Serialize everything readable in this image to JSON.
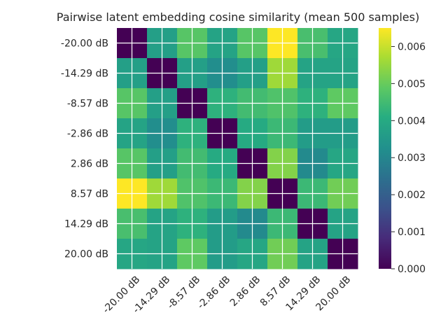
{
  "chart_data": {
    "type": "heatmap",
    "title": "Pairwise latent embedding cosine similarity (mean 500 samples)",
    "xlabel": "",
    "ylabel": "",
    "x_tick_labels": [
      "-20.00 dB",
      "-14.29 dB",
      "-8.57 dB",
      "-2.86 dB",
      "2.86 dB",
      "8.57 dB",
      "14.29 dB",
      "20.00 dB"
    ],
    "y_tick_labels": [
      "-20.00 dB",
      "-14.29 dB",
      "-8.57 dB",
      "-2.86 dB",
      "2.86 dB",
      "8.57 dB",
      "14.29 dB",
      "20.00 dB"
    ],
    "matrix": [
      [
        0.0,
        0.0037,
        0.0048,
        0.0038,
        0.0048,
        0.0065,
        0.0046,
        0.0039
      ],
      [
        0.0037,
        0.0,
        0.0037,
        0.0032,
        0.0037,
        0.0056,
        0.0038,
        0.0038
      ],
      [
        0.0048,
        0.0037,
        0.0,
        0.0042,
        0.0045,
        0.0047,
        0.0042,
        0.0049
      ],
      [
        0.0038,
        0.0032,
        0.0042,
        0.0,
        0.004,
        0.0044,
        0.0036,
        0.0036
      ],
      [
        0.0048,
        0.0037,
        0.0045,
        0.004,
        0.0,
        0.0053,
        0.0031,
        0.0039
      ],
      [
        0.0065,
        0.0056,
        0.0047,
        0.0044,
        0.0053,
        0.0,
        0.0044,
        0.0051
      ],
      [
        0.0046,
        0.0038,
        0.0042,
        0.0036,
        0.0031,
        0.0044,
        0.0,
        0.0038
      ],
      [
        0.0039,
        0.0038,
        0.0049,
        0.0036,
        0.0039,
        0.0051,
        0.0038,
        0.0
      ]
    ],
    "colorbar": {
      "range": [
        0.0,
        0.0065
      ],
      "ticks": [
        0.0,
        0.001,
        0.002,
        0.003,
        0.004,
        0.005,
        0.006
      ],
      "tick_labels": [
        "0.000",
        "0.001",
        "0.002",
        "0.003",
        "0.004",
        "0.005",
        "0.006"
      ],
      "colormap": "viridis"
    },
    "grid": true,
    "x_tick_rotation_deg": 45
  }
}
